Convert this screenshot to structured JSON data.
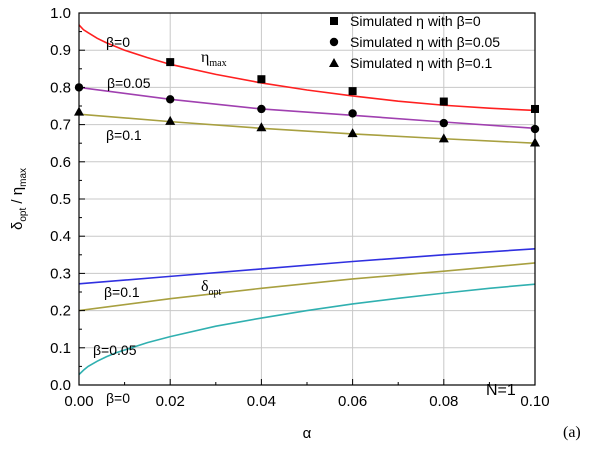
{
  "chart_data": {
    "type": "line",
    "xlabel": "α",
    "ylabel": {
      "d": "δ",
      "d_sub": "opt",
      "sep": " / ",
      "e": "η",
      "e_sub": "max"
    },
    "xlim": [
      0.0,
      0.1
    ],
    "ylim": [
      0.0,
      1.0
    ],
    "x_ticks": [
      "0.00",
      "0.02",
      "0.04",
      "0.06",
      "0.08",
      "0.10"
    ],
    "y_ticks": [
      "0.0",
      "0.1",
      "0.2",
      "0.3",
      "0.4",
      "0.5",
      "0.6",
      "0.7",
      "0.8",
      "0.9",
      "1.0"
    ],
    "grid": true,
    "legend_position": "top-right",
    "series": [
      {
        "name": "η_max β=0",
        "kind": "line",
        "color": "#ff2020",
        "x": [
          0.0,
          0.001,
          0.002,
          0.004,
          0.006,
          0.008,
          0.01,
          0.015,
          0.02,
          0.03,
          0.04,
          0.05,
          0.06,
          0.07,
          0.08,
          0.09,
          0.1
        ],
        "y": [
          0.968,
          0.955,
          0.947,
          0.932,
          0.92,
          0.91,
          0.9,
          0.88,
          0.862,
          0.835,
          0.812,
          0.793,
          0.777,
          0.763,
          0.752,
          0.744,
          0.738
        ]
      },
      {
        "name": "η_max β=0.05",
        "kind": "line",
        "color": "#a040b0",
        "x": [
          0.0,
          0.02,
          0.04,
          0.06,
          0.08,
          0.1
        ],
        "y": [
          0.8,
          0.768,
          0.742,
          0.725,
          0.707,
          0.69
        ]
      },
      {
        "name": "η_max β=0.1",
        "kind": "line",
        "color": "#a8a040",
        "x": [
          0.0,
          0.02,
          0.04,
          0.06,
          0.08,
          0.1
        ],
        "y": [
          0.728,
          0.708,
          0.69,
          0.675,
          0.662,
          0.65
        ]
      },
      {
        "name": "δ_opt β=0.1",
        "kind": "line",
        "color": "#3030e0",
        "x": [
          0.0,
          0.02,
          0.04,
          0.06,
          0.08,
          0.1
        ],
        "y": [
          0.272,
          0.292,
          0.312,
          0.332,
          0.35,
          0.366
        ]
      },
      {
        "name": "δ_opt β=0.05",
        "kind": "line",
        "color": "#a8a040",
        "x": [
          0.0,
          0.02,
          0.04,
          0.06,
          0.08,
          0.1
        ],
        "y": [
          0.2,
          0.232,
          0.26,
          0.285,
          0.306,
          0.328
        ]
      },
      {
        "name": "δ_opt β=0",
        "kind": "line",
        "color": "#30b0b0",
        "x": [
          0.0,
          0.001,
          0.002,
          0.004,
          0.006,
          0.008,
          0.01,
          0.015,
          0.02,
          0.03,
          0.04,
          0.05,
          0.06,
          0.07,
          0.08,
          0.09,
          0.1
        ],
        "y": [
          0.028,
          0.04,
          0.05,
          0.064,
          0.076,
          0.086,
          0.094,
          0.114,
          0.13,
          0.158,
          0.18,
          0.2,
          0.218,
          0.233,
          0.247,
          0.26,
          0.271
        ]
      },
      {
        "name": "Simulated η with β=0",
        "kind": "points",
        "marker": "square",
        "color": "#000000",
        "x": [
          0.02,
          0.04,
          0.06,
          0.08,
          0.1
        ],
        "y": [
          0.868,
          0.822,
          0.79,
          0.762,
          0.742
        ]
      },
      {
        "name": "Simulated η with β=0.05",
        "kind": "points",
        "marker": "circle",
        "color": "#000000",
        "x": [
          0.0,
          0.02,
          0.04,
          0.06,
          0.08,
          0.1
        ],
        "y": [
          0.8,
          0.768,
          0.742,
          0.73,
          0.704,
          0.688
        ]
      },
      {
        "name": "Simulated η with β=0.1",
        "kind": "points",
        "marker": "triangle",
        "color": "#000000",
        "x": [
          0.0,
          0.02,
          0.04,
          0.06,
          0.08,
          0.1
        ],
        "y": [
          0.735,
          0.71,
          0.693,
          0.677,
          0.663,
          0.652
        ]
      }
    ],
    "legend": [
      {
        "marker": "square",
        "label": "Simulated η with β=0"
      },
      {
        "marker": "circle",
        "label": "Simulated η with β=0.05"
      },
      {
        "marker": "triangle",
        "label": "Simulated η with β=0.1"
      }
    ],
    "annotations": {
      "eta_max": {
        "main": "η",
        "sub": "max"
      },
      "delta_opt": {
        "main": "δ",
        "sub": "opt"
      },
      "beta0_top": "β=0",
      "beta005_top": "β=0.05",
      "beta01_top": "β=0.1",
      "beta01_bottom": "β=0.1",
      "beta005_bottom": "β=0.05",
      "beta0_bottom": "β=0",
      "n_label": "N=1",
      "figure_label": "(a)"
    }
  }
}
